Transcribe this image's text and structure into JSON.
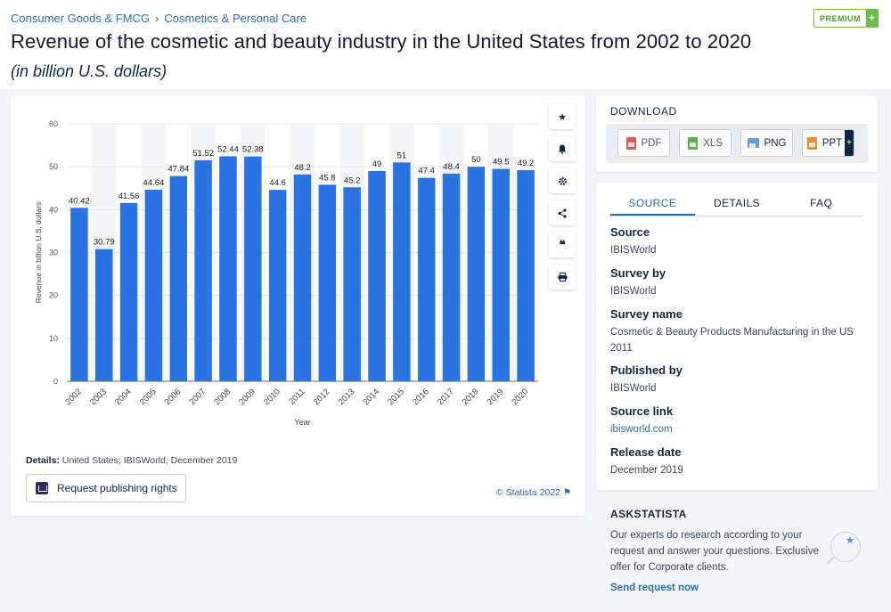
{
  "breadcrumb": {
    "item1": "Consumer Goods & FMCG",
    "sep": "›",
    "item2": "Cosmetics & Personal Care"
  },
  "premium": {
    "label": "PREMIUM",
    "plus": "+"
  },
  "page": {
    "title": "Revenue of the cosmetic and beauty industry in the United States from 2002 to 2020",
    "subtitle": "(in billion U.S. dollars)"
  },
  "tools": [
    "star-icon",
    "bell-icon",
    "gear-icon",
    "share-icon",
    "quote-icon",
    "print-icon"
  ],
  "chart_data": {
    "type": "bar",
    "categories": [
      "2002",
      "2003",
      "2004",
      "2005",
      "2006",
      "2007",
      "2008",
      "2009",
      "2010",
      "2011",
      "2012",
      "2013",
      "2014",
      "2015",
      "2016",
      "2017",
      "2018",
      "2019",
      "2020"
    ],
    "values": [
      40.42,
      30.79,
      41.56,
      44.64,
      47.84,
      51.52,
      52.44,
      52.38,
      44.6,
      48.2,
      45.8,
      45.2,
      49,
      51,
      47.4,
      48.4,
      50,
      49.5,
      49.2
    ],
    "labels": [
      "40.42",
      "30.79",
      "41.56",
      "44.64",
      "47.84",
      "51.52",
      "52.44",
      "52.38",
      "44.6",
      "48.2",
      "45.8",
      "45.2",
      "49",
      "51",
      "47.4",
      "48.4",
      "50",
      "49.5",
      "49.2"
    ],
    "xlabel": "Year",
    "ylabel": "Revenue in billion U.S. dollars",
    "ylim": [
      0,
      60
    ],
    "yticks": [
      0,
      10,
      20,
      30,
      40,
      50,
      60
    ],
    "bar_color": "#2b72e2",
    "grid": true
  },
  "chart_footer": {
    "details_label": "Details:",
    "details_text": "United States; IBISWorld; December 2019",
    "request_button": "Request publishing rights",
    "copyright": "© Statista 2022 ⚑"
  },
  "download": {
    "title": "DOWNLOAD",
    "buttons": [
      {
        "label": "PDF",
        "color": "#e05a4f"
      },
      {
        "label": "XLS",
        "color": "#5ab04a"
      },
      {
        "label": "PNG",
        "color": "#6a9bd8"
      },
      {
        "label": "PPT",
        "color": "#f08a2c"
      }
    ],
    "ppt_plus": "+"
  },
  "source_panel": {
    "tabs": [
      "SOURCE",
      "DETAILS",
      "FAQ"
    ],
    "fields": [
      {
        "label": "Source",
        "value": "IBISWorld"
      },
      {
        "label": "Survey by",
        "value": "IBISWorld"
      },
      {
        "label": "Survey name",
        "value": "Cosmetic & Beauty Products Manufacturing in the US 2011"
      },
      {
        "label": "Published by",
        "value": "IBISWorld"
      },
      {
        "label": "Source link",
        "value": "ibisworld.com"
      },
      {
        "label": "Release date",
        "value": "December 2019"
      }
    ]
  },
  "askstatista": {
    "title": "ASKSTATISTA",
    "text": "Our experts do research according to your request and answer your questions. Exclusive offer for Corporate clients.",
    "link": "Send request now"
  }
}
